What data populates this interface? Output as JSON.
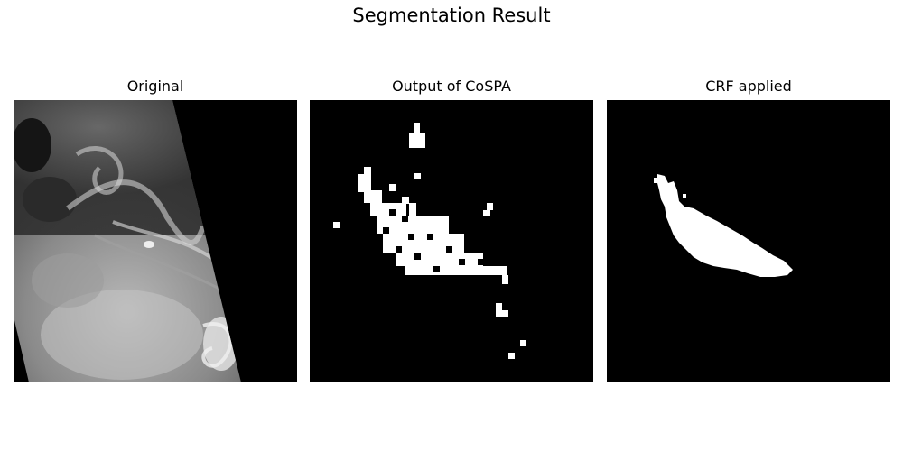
{
  "figure": {
    "title": "Segmentation Result"
  },
  "panels": [
    {
      "title": "Original"
    },
    {
      "title": "Output of CoSPA"
    },
    {
      "title": "CRF applied"
    }
  ],
  "colors": {
    "background": "#ffffff",
    "mask_background": "#000000",
    "mask_foreground": "#ffffff"
  }
}
